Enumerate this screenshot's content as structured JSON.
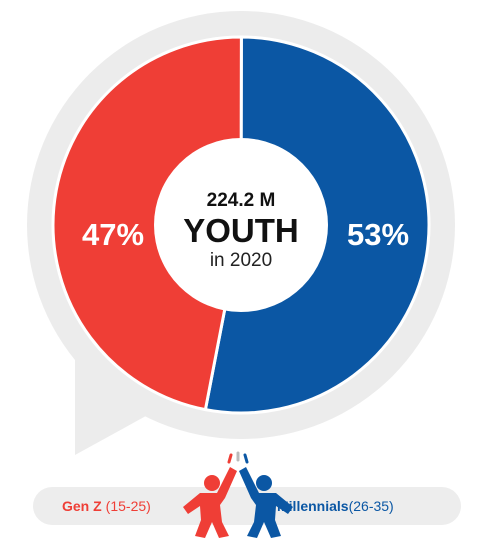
{
  "chart_data": {
    "type": "pie",
    "center": {
      "value": "224.2 M",
      "label": "YOUTH",
      "sublabel": "in 2020"
    },
    "slices": [
      {
        "name": "Millennials",
        "range": "(26-35)",
        "value": 53,
        "label": "53%",
        "color": "#0b57a4"
      },
      {
        "name": "Gen Z",
        "range": "(15-25)",
        "value": 47,
        "label": "47%",
        "color": "#ef3e36"
      }
    ]
  },
  "colors": {
    "gen_z": "#ef3e36",
    "millennials": "#0b57a4",
    "bubble": "#ececec",
    "legend_bar": "#ededed"
  },
  "icons": [
    "two-people-high-five-icon"
  ]
}
